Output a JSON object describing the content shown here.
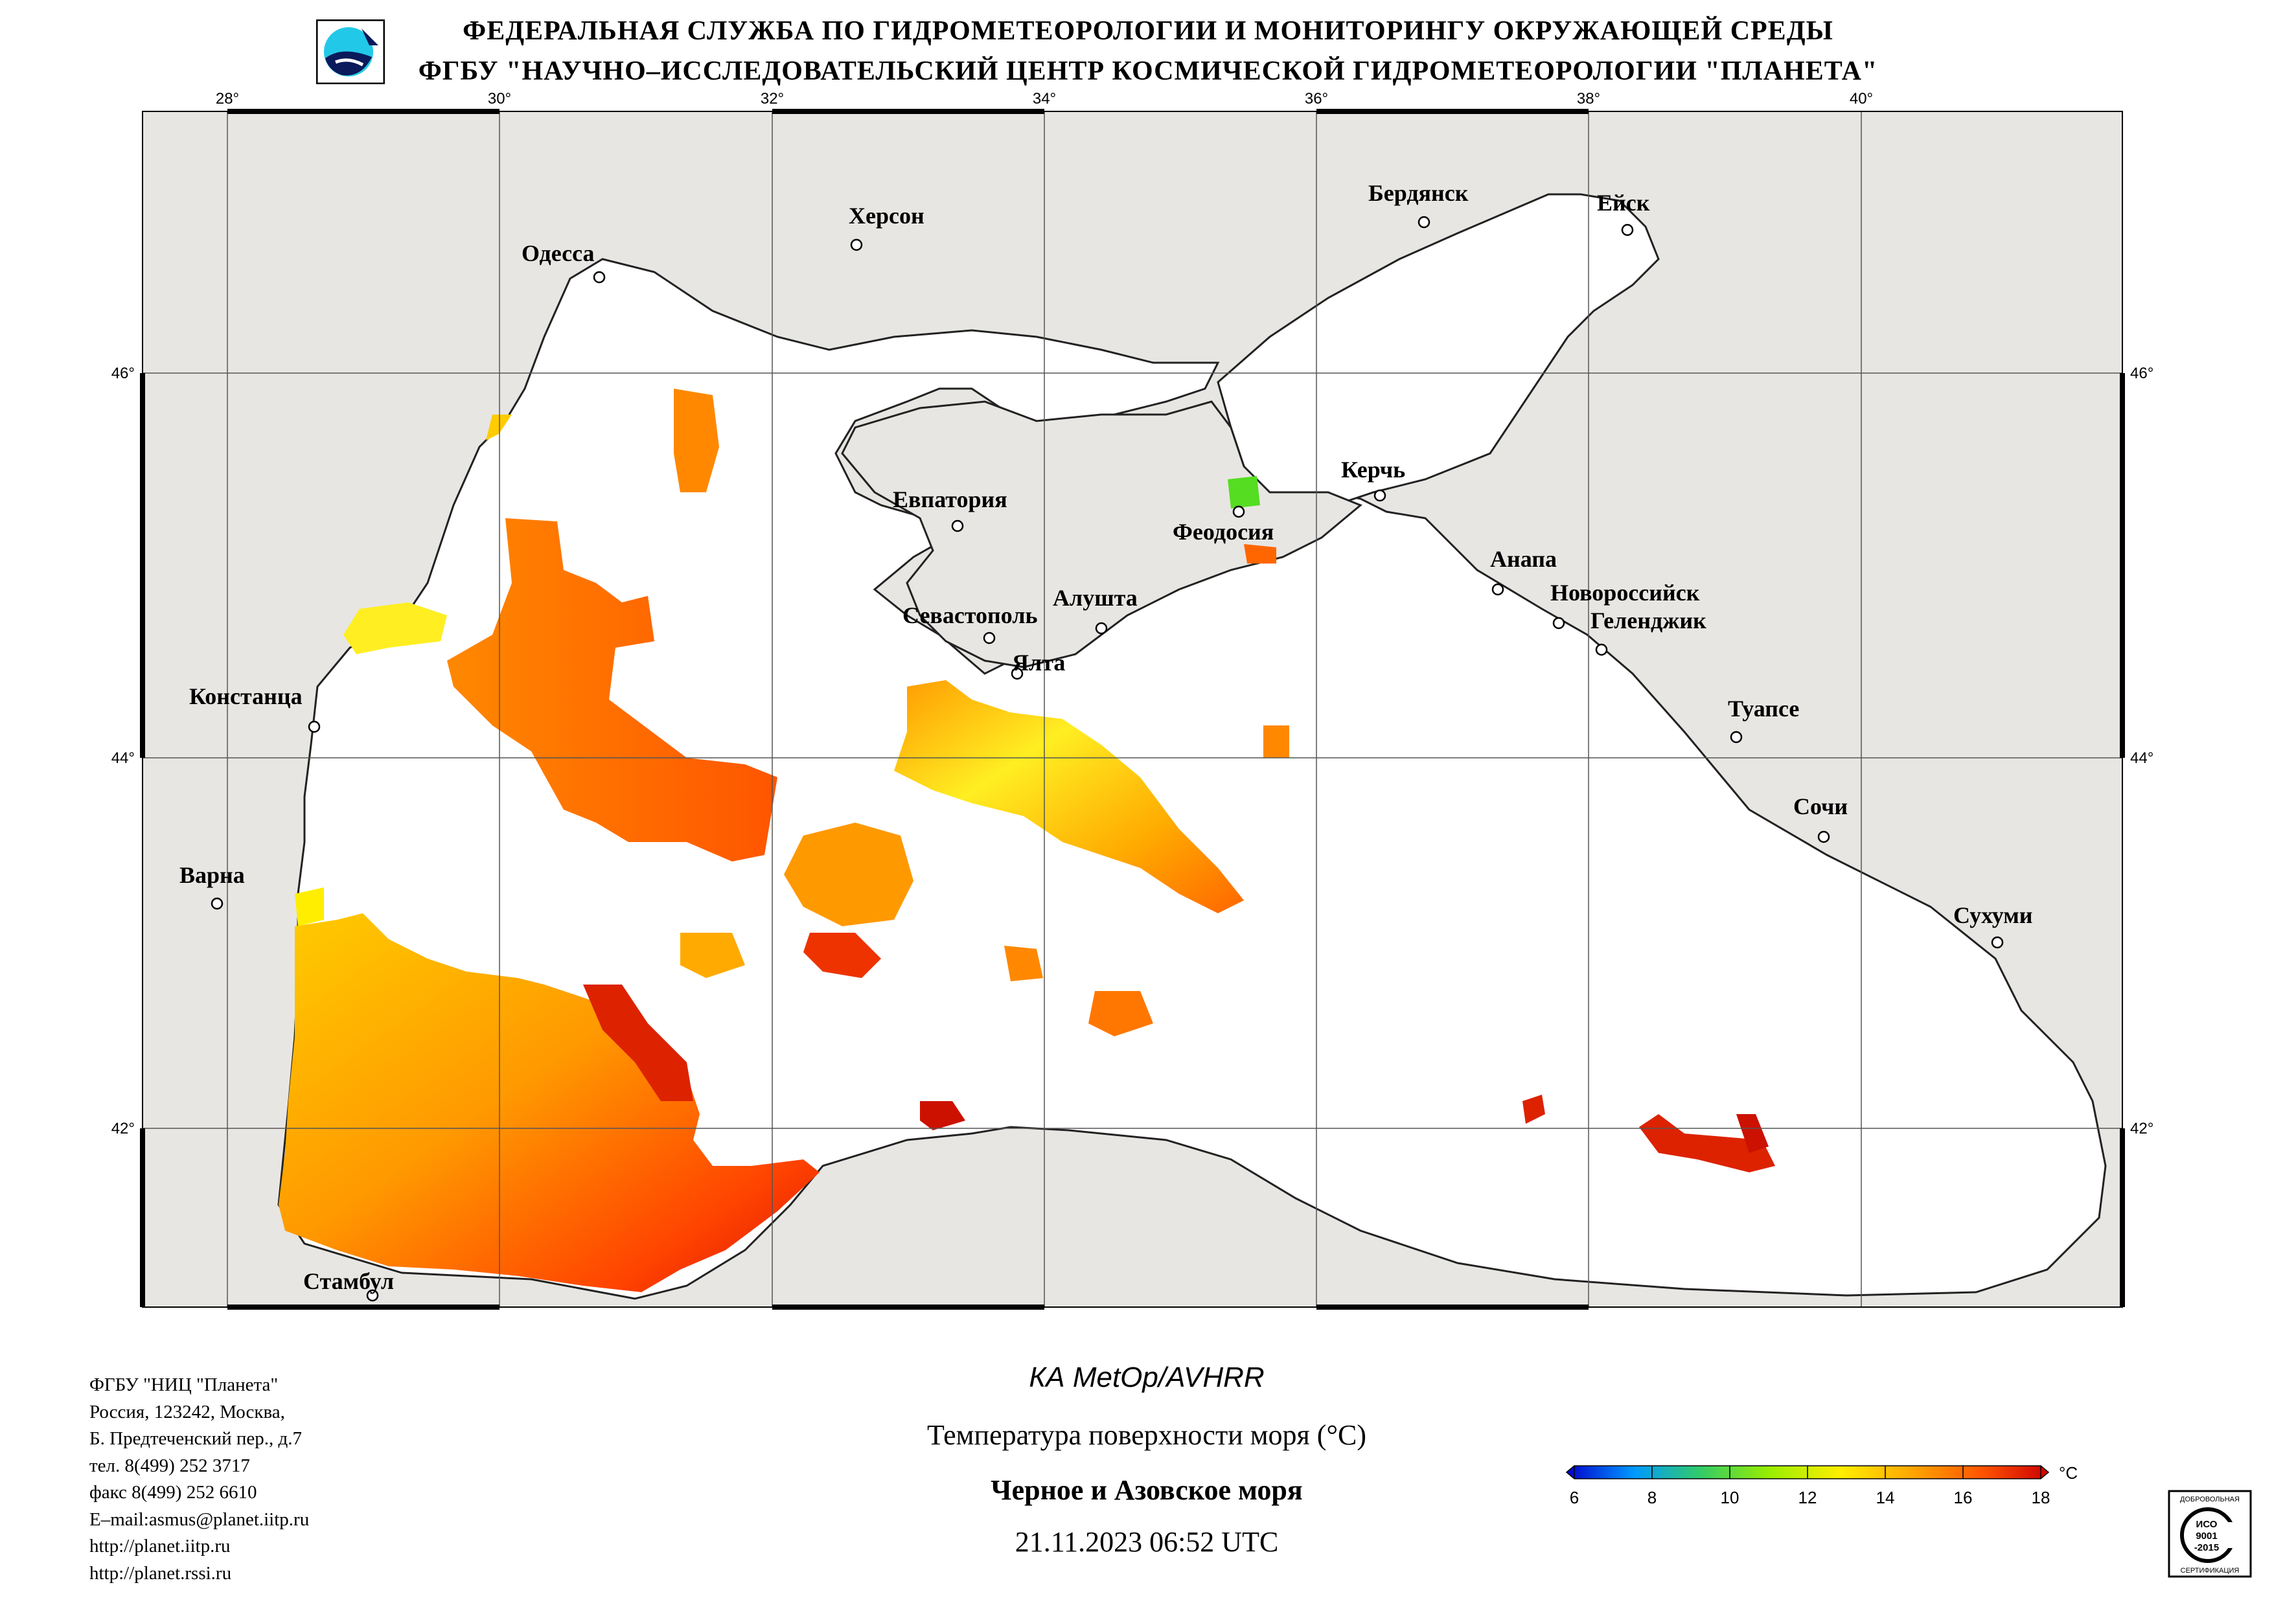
{
  "header": {
    "line1": "ФЕДЕРАЛЬНАЯ СЛУЖБА ПО ГИДРОМЕТЕОРОЛОГИИ И МОНИТОРИНГУ ОКРУЖАЮЩЕЙ СРЕДЫ",
    "line2": "ФГБУ \"НАУЧНО–ИССЛЕДОВАТЕЛЬСКИЙ ЦЕНТР КОСМИЧЕСКОЙ ГИДРОМЕТЕОРОЛОГИИ \"ПЛАНЕТА\""
  },
  "map": {
    "lon_ticks": [
      "28°",
      "30°",
      "32°",
      "34°",
      "36°",
      "38°",
      "40°"
    ],
    "lat_ticks": [
      "46°",
      "44°",
      "42°"
    ],
    "cities": {
      "odessa": "Одесса",
      "kherson": "Херсон",
      "berdyansk": "Бердянск",
      "yeysk": "Ейск",
      "yevpatoriya": "Евпатория",
      "kerch": "Керчь",
      "feodosiya": "Феодосия",
      "sevastopol": "Севастополь",
      "alushta": "Алушта",
      "yalta": "Ялта",
      "anapa": "Анапа",
      "novorossiysk": "Новороссийск",
      "gelendzhik": "Геленджик",
      "constanta": "Констанца",
      "tuapse": "Туапсе",
      "sochi": "Сочи",
      "varna": "Варна",
      "sukhumi": "Сухуми",
      "istanbul": "Стамбул"
    },
    "colors": {
      "land": "#e8e6e3",
      "sea": "#ffffff",
      "coast": "#222222"
    }
  },
  "product": {
    "satellite": "КА MetOp/AVHRR",
    "parameter": "Температура поверхности моря (°C)",
    "region": "Черное и Азовское моря",
    "datetime": "21.11.2023 06:52 UTC"
  },
  "colorbar": {
    "ticks": [
      "6",
      "8",
      "10",
      "12",
      "14",
      "16",
      "18"
    ],
    "unit": "°C",
    "min": 6,
    "max": 18,
    "colors": [
      "#0000cc",
      "#0099ff",
      "#33cc66",
      "#99ee00",
      "#ffee00",
      "#ffaa00",
      "#ff5500",
      "#cc0000"
    ]
  },
  "contacts": [
    "ФГБУ \"НИЦ \"Планета\"",
    "Россия, 123242, Москва,",
    "Б. Предтеченский пер., д.7",
    "тел. 8(499) 252 3717",
    "факс 8(499) 252 6610",
    "E–mail:asmus@planet.iitp.ru",
    "http://planet.iitp.ru",
    "http://planet.rssi.ru"
  ],
  "certificate": {
    "line_top": "ДОБРОВОЛЬНАЯ",
    "iso": "ИСО",
    "num": "9001",
    "year": "-2015",
    "line_bottom": "СЕРТИФИКАЦИЯ"
  }
}
